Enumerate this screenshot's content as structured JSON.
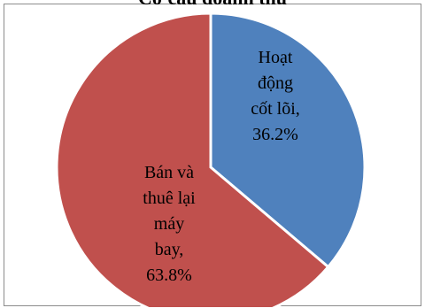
{
  "chart_data": {
    "type": "pie",
    "title": "Cơ cấu doanh thu",
    "colors": [
      "#4f81bd",
      "#c0504d"
    ],
    "slices": [
      {
        "label_lines": [
          "Hoạt",
          "động",
          "cốt lõi,",
          "36.2%"
        ],
        "value": 36.2
      },
      {
        "label_lines": [
          "Bán và",
          "thuê lại",
          "máy",
          "bay,",
          "63.8%"
        ],
        "value": 63.8
      }
    ]
  }
}
